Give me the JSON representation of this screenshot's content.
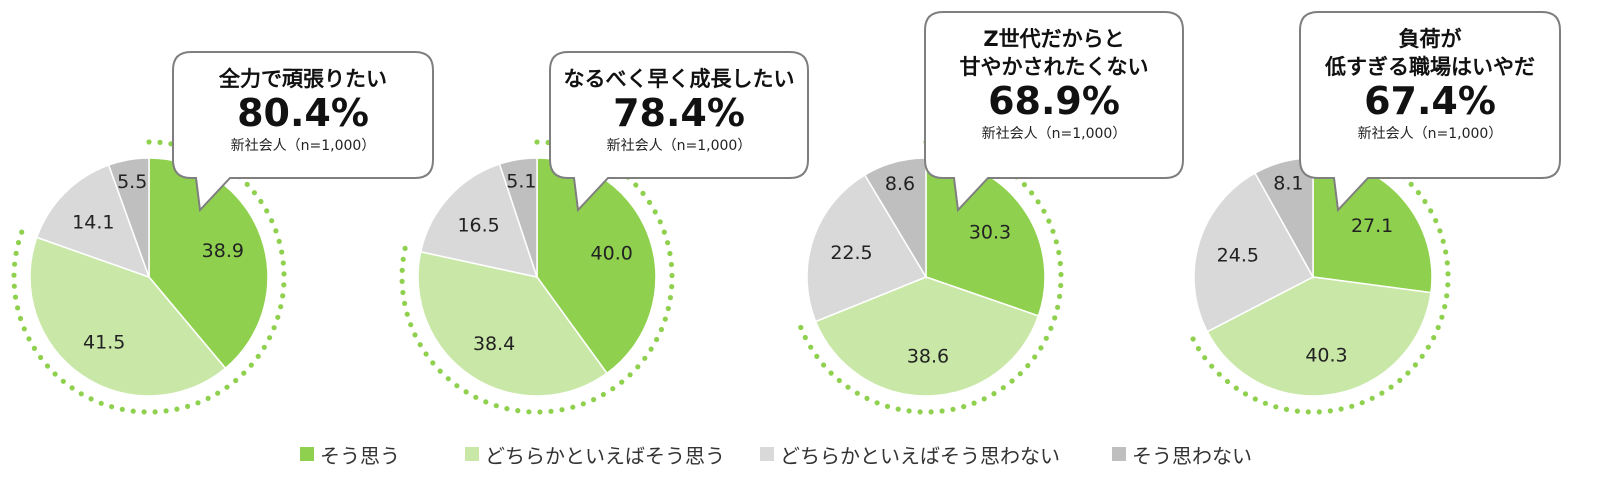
{
  "colors": {
    "agree": "#8fd14f",
    "somewhat_agree": "#c9e8a8",
    "somewhat_disagree": "#d9d9d9",
    "disagree": "#bfbfbf",
    "dots": "#8fd14f",
    "bubble_border": "#7f7f7f"
  },
  "legend": [
    {
      "label": "そう思う",
      "color": "#8fd14f"
    },
    {
      "label": "どちらかといえばそう思う",
      "color": "#c9e8a8"
    },
    {
      "label": "どちらかといえばそう思わない",
      "color": "#d9d9d9"
    },
    {
      "label": "そう思わない",
      "color": "#bfbfbf"
    }
  ],
  "chart_data": [
    {
      "type": "pie",
      "title_lines": [
        "全力で頑張りたい"
      ],
      "headline": "80.4%",
      "base": "新社会人（n=1,000）",
      "categories": [
        "そう思う",
        "どちらかといえばそう思う",
        "どちらかといえばそう思わない",
        "そう思わない"
      ],
      "values": [
        38.9,
        41.5,
        14.1,
        5.5
      ],
      "labels": [
        "38.9",
        "41.5",
        "14.1",
        "5.5"
      ]
    },
    {
      "type": "pie",
      "title_lines": [
        "なるべく早く成長したい"
      ],
      "headline": "78.4%",
      "base": "新社会人（n=1,000）",
      "categories": [
        "そう思う",
        "どちらかといえばそう思う",
        "どちらかといえばそう思わない",
        "そう思わない"
      ],
      "values": [
        40.0,
        38.4,
        16.5,
        5.1
      ],
      "labels": [
        "40.0",
        "38.4",
        "16.5",
        "5.1"
      ]
    },
    {
      "type": "pie",
      "title_lines": [
        "Z世代だからと",
        "甘やかされたくない"
      ],
      "headline": "68.9%",
      "base": "新社会人（n=1,000）",
      "categories": [
        "そう思う",
        "どちらかといえばそう思う",
        "どちらかといえばそう思わない",
        "そう思わない"
      ],
      "values": [
        30.3,
        38.6,
        22.5,
        8.6
      ],
      "labels": [
        "30.3",
        "38.6",
        "22.5",
        "8.6"
      ]
    },
    {
      "type": "pie",
      "title_lines": [
        "負荷が",
        "低すぎる職場はいやだ"
      ],
      "headline": "67.4%",
      "base": "新社会人（n=1,000）",
      "categories": [
        "そう思う",
        "どちらかといえばそう思う",
        "どちらかといえばそう思わない",
        "そう思わない"
      ],
      "values": [
        27.1,
        40.3,
        24.5,
        8.1
      ],
      "labels": [
        "27.1",
        "40.3",
        "24.5",
        "8.1"
      ]
    }
  ]
}
